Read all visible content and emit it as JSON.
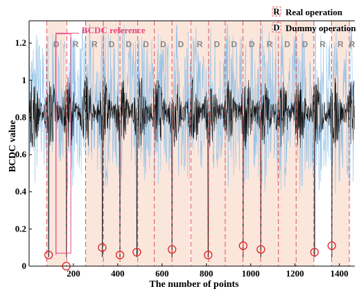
{
  "chart_data": {
    "type": "line",
    "xlabel": "The number of points",
    "ylabel": "BCDC value",
    "xlim": [
      0,
      1470
    ],
    "ylim": [
      0,
      1.32
    ],
    "x_ticks": [
      200,
      400,
      600,
      800,
      1000,
      1200,
      1400
    ],
    "y_ticks": [
      0,
      0.2,
      0.4,
      0.6,
      0.8,
      1,
      1.2
    ],
    "x_tick_labels": [
      "200",
      "400",
      "600",
      "800",
      "1000",
      "1200",
      "1400"
    ],
    "y_tick_labels": [
      "0",
      "0.2",
      "0.4",
      "0.6",
      "0.8",
      "1",
      "1.2"
    ],
    "grid": false,
    "legend_position": "top-right",
    "legend": [
      {
        "marker": "R",
        "label": "Real operation"
      },
      {
        "marker": "D",
        "label": "Dummy operation"
      }
    ],
    "annotation": "BCDC reference",
    "segments": [
      {
        "label": "D",
        "x0": 80,
        "x1": 165
      },
      {
        "label": "R",
        "x0": 170,
        "x1": 250
      },
      {
        "label": "R",
        "x0": 255,
        "x1": 335
      },
      {
        "label": "D",
        "x0": 335,
        "x1": 410
      },
      {
        "label": "D",
        "x0": 410,
        "x1": 490
      },
      {
        "label": "D",
        "x0": 490,
        "x1": 565
      },
      {
        "label": "D",
        "x0": 565,
        "x1": 645
      },
      {
        "label": "D",
        "x0": 645,
        "x1": 725
      },
      {
        "label": "R",
        "x0": 730,
        "x1": 810
      },
      {
        "label": "D",
        "x0": 810,
        "x1": 885
      },
      {
        "label": "D",
        "x0": 885,
        "x1": 965
      },
      {
        "label": "D",
        "x0": 965,
        "x1": 1045
      },
      {
        "label": "R",
        "x0": 1045,
        "x1": 1125
      },
      {
        "label": "D",
        "x0": 1125,
        "x1": 1205
      },
      {
        "label": "D",
        "x0": 1205,
        "x1": 1285
      },
      {
        "label": "R",
        "x0": 1285,
        "x1": 1365
      },
      {
        "label": "R",
        "x0": 1365,
        "x1": 1445
      },
      {
        "label": "R",
        "x0": 1445,
        "x1": 1470
      }
    ],
    "minima_circles": [
      {
        "x": 88,
        "y": 0.06
      },
      {
        "x": 168,
        "y": 0.0
      },
      {
        "x": 330,
        "y": 0.1
      },
      {
        "x": 410,
        "y": 0.06
      },
      {
        "x": 486,
        "y": 0.075
      },
      {
        "x": 645,
        "y": 0.09
      },
      {
        "x": 808,
        "y": 0.06
      },
      {
        "x": 966,
        "y": 0.11
      },
      {
        "x": 1046,
        "y": 0.09
      },
      {
        "x": 1288,
        "y": 0.075
      },
      {
        "x": 1366,
        "y": 0.11
      }
    ],
    "series": [
      {
        "style": "black trace, typical range",
        "band": [
          0.7,
          0.95
        ]
      },
      {
        "style": "light blue trace, typical range",
        "band": [
          0.45,
          1.28
        ]
      }
    ],
    "colors": {
      "real_trace": "#111111",
      "reference_trace": "#8fbfe6",
      "shade": "#f9ddd0",
      "dash_line": "#e05050",
      "circle": "#e02020",
      "reference_label": "#e8457c"
    }
  }
}
